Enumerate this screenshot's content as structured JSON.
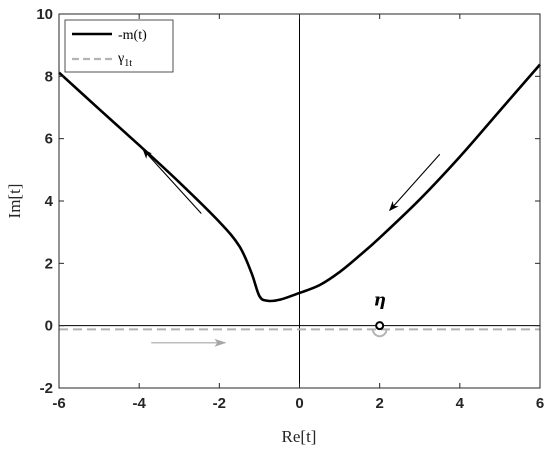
{
  "chart_data": {
    "type": "line",
    "xlabel": "Re[t]",
    "ylabel": "Im[t]",
    "xlim": [
      -6,
      6
    ],
    "ylim": [
      -2,
      10
    ],
    "x_ticks": [
      -6,
      -4,
      -2,
      0,
      2,
      4,
      6
    ],
    "y_ticks": [
      -2,
      0,
      2,
      4,
      6,
      8,
      10
    ],
    "x_tick_labels": [
      "-6",
      "-4",
      "-2",
      "0",
      "2",
      "4",
      "6"
    ],
    "y_tick_labels": [
      "-2",
      "0",
      "2",
      "4",
      "6",
      "8",
      "10"
    ],
    "grid": false,
    "legend_position": "top-left",
    "series": [
      {
        "name": "-m(t)",
        "style": "solid",
        "color": "#000000",
        "points": [
          [
            -6,
            8.12
          ],
          [
            -5,
            6.95
          ],
          [
            -4,
            5.79
          ],
          [
            -3,
            4.6
          ],
          [
            -2,
            3.33
          ],
          [
            -1.5,
            2.55
          ],
          [
            -1.2,
            1.7
          ],
          [
            -1,
            0.95
          ],
          [
            -0.8,
            0.8
          ],
          [
            -0.5,
            0.83
          ],
          [
            0,
            1.05
          ],
          [
            0.5,
            1.3
          ],
          [
            1,
            1.72
          ],
          [
            1.5,
            2.25
          ],
          [
            2,
            2.82
          ],
          [
            3,
            4.05
          ],
          [
            4,
            5.42
          ],
          [
            5,
            6.9
          ],
          [
            6,
            8.38
          ]
        ]
      },
      {
        "name": "γ1t",
        "name_main": "γ",
        "name_sub": "1t",
        "style": "dashed",
        "color": "#b3b3b3",
        "y": -0.12
      }
    ],
    "annotations": [
      {
        "type": "point",
        "label": "η",
        "x": 2.0,
        "y": 0.0
      },
      {
        "type": "semicircle",
        "center": [
          2.0,
          -0.12
        ],
        "radius": 0.17,
        "color": "#b3b3b3"
      },
      {
        "type": "arrow",
        "from": [
          3.5,
          5.5
        ],
        "to": [
          2.25,
          3.7
        ],
        "color": "#000000"
      },
      {
        "type": "arrow",
        "from": [
          -2.45,
          3.6
        ],
        "to": [
          -3.9,
          5.65
        ],
        "color": "#000000"
      },
      {
        "type": "arrow",
        "from": [
          -3.7,
          -0.55
        ],
        "to": [
          -1.85,
          -0.55
        ],
        "color": "#a6a6a6"
      }
    ]
  }
}
